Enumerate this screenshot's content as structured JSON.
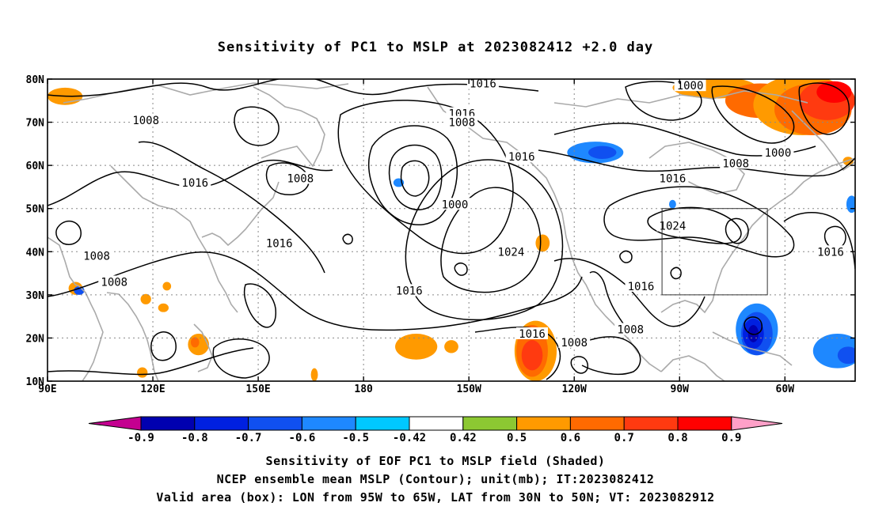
{
  "title": "Sensitivity of PC1 to MSLP at 2023082412 +2.0 day",
  "captions": [
    "Sensitivity of EOF PC1 to MSLP field (Shaded)",
    "NCEP ensemble mean MSLP (Contour); unit(mb); IT:2023082412",
    "Valid area (box): LON from 95W to 65W, LAT from 30N to 50N; VT: 2023082912"
  ],
  "map": {
    "lon_range": [
      90,
      320
    ],
    "lat_range": [
      10,
      80
    ],
    "lon_ticks": [
      {
        "lon": 90,
        "label": "90E"
      },
      {
        "lon": 120,
        "label": "120E"
      },
      {
        "lon": 150,
        "label": "150E"
      },
      {
        "lon": 180,
        "label": "180"
      },
      {
        "lon": 210,
        "label": "150W"
      },
      {
        "lon": 240,
        "label": "120W"
      },
      {
        "lon": 270,
        "label": "90W"
      },
      {
        "lon": 300,
        "label": "60W"
      }
    ],
    "lat_ticks": [
      {
        "lat": 80,
        "label": "80N"
      },
      {
        "lat": 70,
        "label": "70N"
      },
      {
        "lat": 60,
        "label": "60N"
      },
      {
        "lat": 50,
        "label": "50N"
      },
      {
        "lat": 40,
        "label": "40N"
      },
      {
        "lat": 30,
        "label": "30N"
      },
      {
        "lat": 20,
        "label": "20N"
      },
      {
        "lat": 10,
        "label": "10N"
      }
    ],
    "valid_box": {
      "lon_min": 265,
      "lon_max": 295,
      "lat_min": 30,
      "lat_max": 50
    },
    "contour_labels": [
      {
        "text": "1016",
        "lon": 214,
        "lat": 79
      },
      {
        "text": "1016",
        "lon": 208,
        "lat": 72
      },
      {
        "text": "1008",
        "lon": 208,
        "lat": 70
      },
      {
        "text": "1008",
        "lon": 118,
        "lat": 70.5
      },
      {
        "text": "1016",
        "lon": 132,
        "lat": 56
      },
      {
        "text": "1008",
        "lon": 162,
        "lat": 57
      },
      {
        "text": "1016",
        "lon": 225,
        "lat": 62
      },
      {
        "text": "1000",
        "lon": 206,
        "lat": 51
      },
      {
        "text": "1016",
        "lon": 156,
        "lat": 42
      },
      {
        "text": "1024",
        "lon": 222,
        "lat": 40
      },
      {
        "text": "1008",
        "lon": 104,
        "lat": 39
      },
      {
        "text": "1008",
        "lon": 109,
        "lat": 33
      },
      {
        "text": "1016",
        "lon": 193,
        "lat": 31
      },
      {
        "text": "1016",
        "lon": 228,
        "lat": 21
      },
      {
        "text": "1008",
        "lon": 240,
        "lat": 19
      },
      {
        "text": "1016",
        "lon": 259,
        "lat": 32
      },
      {
        "text": "1008",
        "lon": 256,
        "lat": 22
      },
      {
        "text": "1000",
        "lon": 273,
        "lat": 78.5
      },
      {
        "text": "1000",
        "lon": 298,
        "lat": 63
      },
      {
        "text": "1008",
        "lon": 286,
        "lat": 60.5
      },
      {
        "text": "1016",
        "lon": 268,
        "lat": 57
      },
      {
        "text": "1024",
        "lon": 268,
        "lat": 46
      },
      {
        "text": "1016",
        "lon": 313,
        "lat": 40
      }
    ],
    "shaded_regions": [
      {
        "value": 0.5,
        "lon": 95,
        "lat": 76,
        "rlon": 5,
        "rlat": 2
      },
      {
        "value": 0.5,
        "lon": 280,
        "lat": 78,
        "rlon": 12,
        "rlat": 2.5
      },
      {
        "value": 0.6,
        "lon": 293,
        "lat": 75,
        "rlon": 10,
        "rlat": 4
      },
      {
        "value": 0.5,
        "lon": 305,
        "lat": 74,
        "rlon": 14,
        "rlat": 7
      },
      {
        "value": 0.6,
        "lon": 308,
        "lat": 73,
        "rlon": 11,
        "rlat": 6
      },
      {
        "value": 0.7,
        "lon": 312,
        "lat": 75,
        "rlon": 8,
        "rlat": 4.5
      },
      {
        "value": 0.8,
        "lon": 314,
        "lat": 77,
        "rlon": 5,
        "rlat": 2.5
      },
      {
        "value": -0.5,
        "lon": 246,
        "lat": 63,
        "rlon": 8,
        "rlat": 2.5
      },
      {
        "value": -0.6,
        "lon": 248,
        "lat": 63,
        "rlon": 4,
        "rlat": 1.5
      },
      {
        "value": -0.5,
        "lon": 190,
        "lat": 56,
        "rlon": 1.5,
        "rlat": 1
      },
      {
        "value": 0.5,
        "lon": 98,
        "lat": 31.5,
        "rlon": 2,
        "rlat": 1.5
      },
      {
        "value": -0.6,
        "lon": 99,
        "lat": 31,
        "rlon": 1.5,
        "rlat": 1
      },
      {
        "value": 0.5,
        "lon": 118,
        "lat": 29,
        "rlon": 1.5,
        "rlat": 1.2
      },
      {
        "value": 0.5,
        "lon": 123,
        "lat": 27,
        "rlon": 1.5,
        "rlat": 1
      },
      {
        "value": 0.5,
        "lon": 124,
        "lat": 32,
        "rlon": 1.2,
        "rlat": 1
      },
      {
        "value": 0.5,
        "lon": 133,
        "lat": 18.5,
        "rlon": 3,
        "rlat": 2.5
      },
      {
        "value": 0.6,
        "lon": 132,
        "lat": 19,
        "rlon": 1.2,
        "rlat": 1.2
      },
      {
        "value": 0.5,
        "lon": 117,
        "lat": 12,
        "rlon": 1.5,
        "rlat": 1.2
      },
      {
        "value": 0.5,
        "lon": 166,
        "lat": 11.5,
        "rlon": 1,
        "rlat": 1.5
      },
      {
        "value": 0.5,
        "lon": 195,
        "lat": 18,
        "rlon": 6,
        "rlat": 3
      },
      {
        "value": 0.5,
        "lon": 205,
        "lat": 18,
        "rlon": 2,
        "rlat": 1.5
      },
      {
        "value": 0.5,
        "lon": 229,
        "lat": 17,
        "rlon": 6,
        "rlat": 7
      },
      {
        "value": 0.6,
        "lon": 228,
        "lat": 17,
        "rlon": 4.5,
        "rlat": 6
      },
      {
        "value": 0.7,
        "lon": 228,
        "lat": 16,
        "rlon": 3,
        "rlat": 3.5
      },
      {
        "value": 0.5,
        "lon": 231,
        "lat": 42,
        "rlon": 2,
        "rlat": 2
      },
      {
        "value": -0.5,
        "lon": 268,
        "lat": 51,
        "rlon": 1,
        "rlat": 1
      },
      {
        "value": -0.5,
        "lon": 292,
        "lat": 22,
        "rlon": 6,
        "rlat": 6
      },
      {
        "value": -0.6,
        "lon": 292,
        "lat": 21,
        "rlon": 4.5,
        "rlat": 5
      },
      {
        "value": -0.7,
        "lon": 291,
        "lat": 21,
        "rlon": 3,
        "rlat": 3.5
      },
      {
        "value": -0.8,
        "lon": 291,
        "lat": 21,
        "rlon": 1.5,
        "rlat": 2
      },
      {
        "value": -0.5,
        "lon": 315,
        "lat": 17,
        "rlon": 7,
        "rlat": 4
      },
      {
        "value": -0.6,
        "lon": 318,
        "lat": 16,
        "rlon": 3,
        "rlat": 2
      },
      {
        "value": -0.5,
        "lon": 319,
        "lat": 51,
        "rlon": 1.5,
        "rlat": 2
      },
      {
        "value": 0.5,
        "lon": 318,
        "lat": 61,
        "rlon": 1.5,
        "rlat": 1
      }
    ]
  },
  "colorbar": {
    "ticks": [
      "-0.9",
      "-0.8",
      "-0.7",
      "-0.6",
      "-0.5",
      "-0.42",
      "0.42",
      "0.5",
      "0.6",
      "0.7",
      "0.8",
      "0.9"
    ],
    "colors": {
      "lt_-0.9": "#c40090",
      "-0.9_-0.8": "#0000b0",
      "-0.8_-0.7": "#0020e0",
      "-0.7_-0.6": "#1050f0",
      "-0.6_-0.5": "#1e88ff",
      "-0.5_-0.42": "#00c8ff",
      "-0.42_0.42": "#ffffff",
      "0.42_0.5": "#8cc832",
      "0.5_0.6": "#ff9a00",
      "0.6_0.7": "#ff6a00",
      "0.7_0.8": "#ff3a10",
      "0.8_0.9": "#ff0000",
      "gt_0.9": "#ffa0c8"
    }
  }
}
